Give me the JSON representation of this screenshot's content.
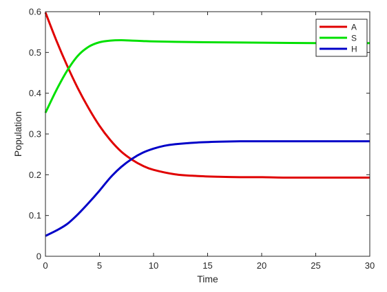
{
  "chart_data": {
    "type": "line",
    "title": "",
    "xlabel": "Time",
    "ylabel": "Population",
    "xlim": [
      0,
      30
    ],
    "ylim": [
      0,
      0.6
    ],
    "xticks": [
      0,
      5,
      10,
      15,
      20,
      25,
      30
    ],
    "yticks": [
      0,
      0.1,
      0.2,
      0.3,
      0.4,
      0.5,
      0.6
    ],
    "xtick_labels": [
      "0",
      "5",
      "10",
      "15",
      "20",
      "25",
      "30"
    ],
    "ytick_labels": [
      "0",
      "0.1",
      "0.2",
      "0.3",
      "0.4",
      "0.5",
      "0.6"
    ],
    "grid": false,
    "legend_position": "top-right",
    "series": [
      {
        "name": "A",
        "color": "#e00000",
        "x": [
          0,
          1,
          2,
          3,
          4,
          5,
          6,
          7,
          8,
          9,
          10,
          12,
          14,
          16,
          18,
          20,
          22,
          25,
          30
        ],
        "y": [
          0.598,
          0.53,
          0.468,
          0.412,
          0.363,
          0.32,
          0.285,
          0.257,
          0.237,
          0.222,
          0.212,
          0.201,
          0.197,
          0.195,
          0.194,
          0.194,
          0.193,
          0.193,
          0.193
        ]
      },
      {
        "name": "S",
        "color": "#00e000",
        "x": [
          0,
          1,
          2,
          3,
          4,
          5,
          6,
          7,
          8,
          9,
          10,
          12,
          15,
          20,
          25,
          30
        ],
        "y": [
          0.352,
          0.407,
          0.455,
          0.492,
          0.514,
          0.525,
          0.529,
          0.53,
          0.529,
          0.528,
          0.527,
          0.526,
          0.525,
          0.524,
          0.523,
          0.523
        ]
      },
      {
        "name": "H",
        "color": "#0000c8",
        "x": [
          0,
          1,
          2,
          3,
          4,
          5,
          6,
          7,
          8,
          9,
          10,
          11,
          12,
          14,
          16,
          18,
          20,
          25,
          30
        ],
        "y": [
          0.05,
          0.063,
          0.079,
          0.103,
          0.131,
          0.161,
          0.193,
          0.219,
          0.239,
          0.254,
          0.264,
          0.271,
          0.275,
          0.279,
          0.281,
          0.282,
          0.282,
          0.282,
          0.282
        ]
      }
    ]
  }
}
